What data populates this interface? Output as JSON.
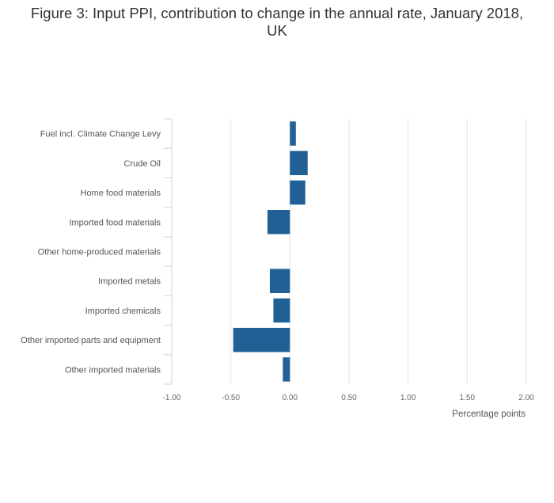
{
  "chart_data": {
    "type": "bar",
    "orientation": "horizontal",
    "title": "Figure 3: Input PPI, contribution to change in the annual rate, January 2018,\nUK",
    "categories": [
      "Fuel incl. Climate Change Levy",
      "Crude Oil",
      "Home food materials",
      "Imported food materials",
      "Other home-produced materials",
      "Imported metals",
      "Imported chemicals",
      "Other imported parts and equipment",
      "Other imported materials"
    ],
    "values": [
      0.05,
      0.15,
      0.13,
      -0.19,
      0.0,
      -0.17,
      -0.14,
      -0.48,
      -0.06
    ],
    "xlabel": "Percentage points",
    "ylabel": "",
    "xlim": [
      -1.0,
      2.0
    ],
    "xticks": [
      -1.0,
      -0.5,
      0.0,
      0.5,
      1.0,
      1.5,
      2.0
    ],
    "xtick_labels": [
      "-1.00",
      "-0.50",
      "0.00",
      "0.50",
      "1.00",
      "1.50",
      "2.00"
    ],
    "grid": "vertical",
    "bar_color": "#206095",
    "grid_color": "#e3e3e3",
    "axis_color": "#c8d3df"
  }
}
